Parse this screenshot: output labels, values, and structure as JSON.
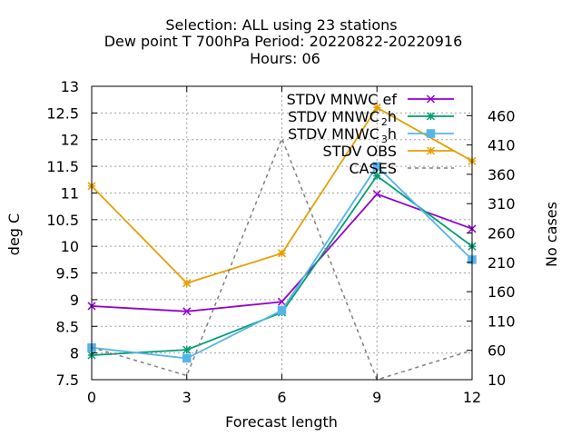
{
  "chart_data": {
    "type": "line",
    "title": [
      "Selection: ALL using    23 stations",
      "Dew point T 700hPa   Period: 20220822-20220916",
      "Hours:  06"
    ],
    "xlabel": "Forecast length",
    "ylabel": "deg C",
    "y2label": "No cases",
    "x": [
      0,
      3,
      6,
      9,
      12
    ],
    "xlim": [
      0,
      12
    ],
    "ylim": [
      7.5,
      13
    ],
    "y2lim": [
      10,
      510
    ],
    "xticks": [
      "0",
      "3",
      "6",
      "9",
      "12"
    ],
    "yticks": [
      "7.5",
      "8",
      "8.5",
      "9",
      "9.5",
      "10",
      "10.5",
      "11",
      "11.5",
      "12",
      "12.5",
      "13"
    ],
    "y2ticks": [
      "10",
      "60",
      "110",
      "160",
      "210",
      "260",
      "310",
      "360",
      "410",
      "460"
    ],
    "grid": true,
    "legend": "top-right",
    "series": [
      {
        "label": "STDV MNWC",
        "sub": "",
        "suffix": "ef",
        "axis": "y",
        "color": "#9400d3",
        "marker": "x",
        "dash": false,
        "values": [
          8.88,
          8.78,
          8.96,
          10.98,
          10.33
        ]
      },
      {
        "label": "STDV MNWC",
        "sub": "2",
        "suffix": "h",
        "axis": "y",
        "color": "#009e73",
        "marker": "star",
        "dash": false,
        "values": [
          7.96,
          8.06,
          8.76,
          11.32,
          10.0
        ]
      },
      {
        "label": "STDV MNWC",
        "sub": "3",
        "suffix": "h",
        "axis": "y",
        "color": "#56b4e9",
        "marker": "box",
        "dash": false,
        "values": [
          8.1,
          7.9,
          8.8,
          11.5,
          9.75
        ]
      },
      {
        "label": "STDV OBS",
        "sub": "",
        "suffix": "",
        "axis": "y",
        "color": "#e69f00",
        "marker": "star",
        "dash": false,
        "values": [
          11.13,
          9.31,
          9.87,
          12.6,
          11.6
        ]
      },
      {
        "label": "CASES",
        "sub": "",
        "suffix": "",
        "axis": "y2",
        "color": "#808080",
        "marker": "none",
        "dash": true,
        "values": [
          65,
          17,
          421,
          10,
          60
        ]
      }
    ]
  }
}
